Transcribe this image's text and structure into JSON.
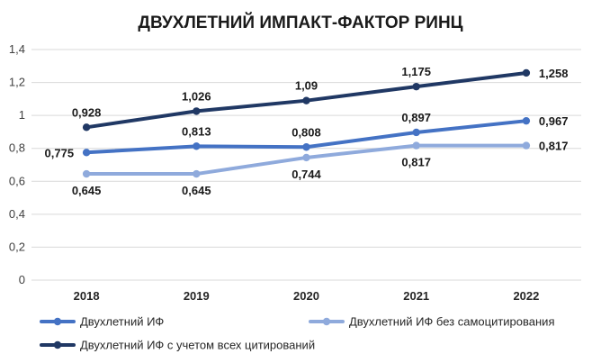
{
  "chart_data": {
    "type": "line",
    "title": "ДВУХЛЕТНИЙ ИМПАКТ-ФАКТОР РИНЦ",
    "xlabel": "",
    "ylabel": "",
    "ylim": [
      0,
      1.4
    ],
    "y_ticks": [
      "0",
      "0,2",
      "0,4",
      "0,6",
      "0,8",
      "1",
      "1,2",
      "1,4"
    ],
    "y_tick_values": [
      0,
      0.2,
      0.4,
      0.6,
      0.8,
      1.0,
      1.2,
      1.4
    ],
    "categories": [
      "2018",
      "2019",
      "2020",
      "2021",
      "2022"
    ],
    "grid": true,
    "legend_position": "bottom",
    "series": [
      {
        "name": "Двухлетний ИФ",
        "color": "#4472c4",
        "values": [
          0.775,
          0.813,
          0.808,
          0.897,
          0.967
        ],
        "labels": [
          "0,775",
          "0,813",
          "0,808",
          "0,897",
          "0,967"
        ]
      },
      {
        "name": "Двухлетний ИФ без самоцитирования",
        "color": "#8faadc",
        "values": [
          0.645,
          0.645,
          0.744,
          0.817,
          0.817
        ],
        "labels": [
          "0,645",
          "0,645",
          "0,744",
          "0,817",
          "0,817"
        ]
      },
      {
        "name": "Двухлетний ИФ с учетом всех цитирований",
        "color": "#203864",
        "values": [
          0.928,
          1.026,
          1.09,
          1.175,
          1.258
        ],
        "labels": [
          "0,928",
          "1,026",
          "1,09",
          "1,175",
          "1,258"
        ]
      }
    ]
  }
}
